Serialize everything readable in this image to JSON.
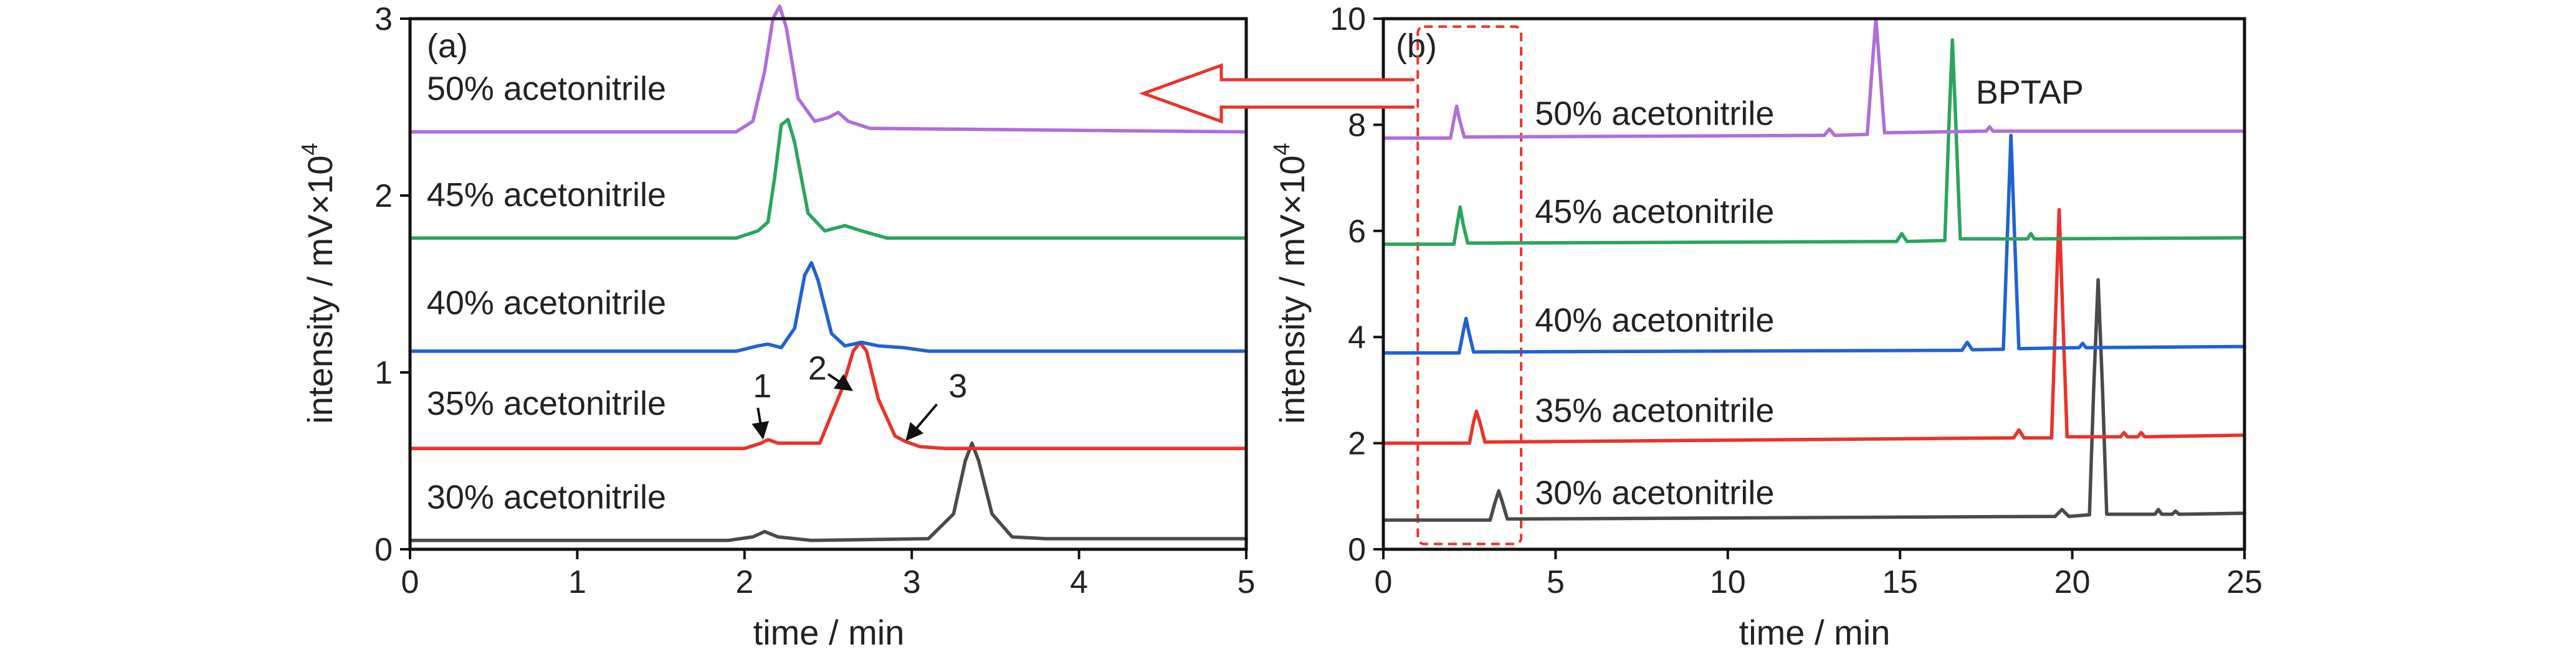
{
  "chart_data": [
    {
      "type": "line",
      "panel_label": "(a)",
      "xlabel": "time / min",
      "ylabel": "intensity / mV×10",
      "ylabel_exponent": "4",
      "xlim": [
        0,
        5
      ],
      "ylim": [
        0,
        3
      ],
      "xticks": [
        0,
        1,
        2,
        3,
        4,
        5
      ],
      "yticks": [
        0,
        1,
        2,
        3
      ],
      "grid": false,
      "series": [
        {
          "name": "30% acetonitrile",
          "color": "#4a4a4a",
          "label_y": 0.23,
          "label_x": 0.1,
          "x": [
            0,
            1.9,
            2.05,
            2.12,
            2.2,
            2.4,
            3.1,
            3.25,
            3.32,
            3.36,
            3.4,
            3.48,
            3.6,
            3.8,
            5
          ],
          "y": [
            0.05,
            0.05,
            0.07,
            0.1,
            0.07,
            0.05,
            0.06,
            0.2,
            0.5,
            0.6,
            0.5,
            0.2,
            0.07,
            0.06,
            0.06
          ]
        },
        {
          "name": "35% acetonitrile",
          "color": "#e8332b",
          "label_y": 0.76,
          "label_x": 0.1,
          "x": [
            0,
            2.0,
            2.1,
            2.14,
            2.2,
            2.45,
            2.58,
            2.65,
            2.69,
            2.73,
            2.8,
            2.9,
            2.96,
            3.05,
            3.2,
            5
          ],
          "y": [
            0.57,
            0.57,
            0.6,
            0.62,
            0.6,
            0.6,
            0.9,
            1.12,
            1.17,
            1.12,
            0.85,
            0.64,
            0.61,
            0.58,
            0.57,
            0.57
          ]
        },
        {
          "name": "40% acetonitrile",
          "color": "#1f63d1",
          "label_y": 1.33,
          "label_x": 0.1,
          "x": [
            0,
            1.95,
            2.08,
            2.14,
            2.22,
            2.3,
            2.36,
            2.4,
            2.44,
            2.52,
            2.6,
            2.7,
            2.8,
            2.95,
            3.1,
            5
          ],
          "y": [
            1.12,
            1.12,
            1.15,
            1.16,
            1.14,
            1.25,
            1.55,
            1.62,
            1.52,
            1.22,
            1.15,
            1.17,
            1.15,
            1.14,
            1.12,
            1.12
          ]
        },
        {
          "name": "45% acetonitrile",
          "color": "#2aa55e",
          "label_y": 1.94,
          "label_x": 0.1,
          "x": [
            0,
            1.95,
            2.08,
            2.14,
            2.18,
            2.22,
            2.26,
            2.3,
            2.38,
            2.48,
            2.6,
            2.7,
            2.85,
            5
          ],
          "y": [
            1.76,
            1.76,
            1.8,
            1.85,
            2.1,
            2.4,
            2.43,
            2.3,
            1.9,
            1.8,
            1.83,
            1.8,
            1.76,
            1.76
          ]
        },
        {
          "name": "50% acetonitrile",
          "color": "#b06ed8",
          "label_y": 2.54,
          "label_x": 0.1,
          "x": [
            0,
            1.95,
            2.05,
            2.12,
            2.17,
            2.21,
            2.25,
            2.32,
            2.42,
            2.5,
            2.56,
            2.62,
            2.75,
            5
          ],
          "y": [
            2.36,
            2.36,
            2.42,
            2.7,
            3.0,
            3.07,
            2.95,
            2.55,
            2.42,
            2.44,
            2.47,
            2.42,
            2.38,
            2.36
          ]
        }
      ],
      "annotations": [
        {
          "text": "1",
          "text_x": 2.05,
          "text_y": 0.86,
          "arrow_from": [
            2.08,
            0.8
          ],
          "arrow_to": [
            2.11,
            0.63
          ]
        },
        {
          "text": "2",
          "text_x": 2.38,
          "text_y": 0.96,
          "arrow_from": [
            2.5,
            0.99
          ],
          "arrow_to": [
            2.64,
            0.9
          ]
        },
        {
          "text": "3",
          "text_x": 3.22,
          "text_y": 0.86,
          "arrow_from": [
            3.15,
            0.82
          ],
          "arrow_to": [
            2.97,
            0.62
          ]
        }
      ]
    },
    {
      "type": "line",
      "panel_label": "(b)",
      "xlabel": "time / min",
      "ylabel": "intensity / mV×10",
      "ylabel_exponent": "4",
      "xlim": [
        0,
        25
      ],
      "ylim": [
        0,
        10
      ],
      "xticks": [
        0,
        5,
        10,
        15,
        20,
        25
      ],
      "yticks": [
        0,
        2,
        4,
        6,
        8,
        10
      ],
      "grid": false,
      "series": [
        {
          "name": "30% acetonitrile",
          "color": "#4a4a4a",
          "label_y": 0.85,
          "label_x": 4.4,
          "x": [
            0,
            3.1,
            3.25,
            3.35,
            3.45,
            3.6,
            19.5,
            19.7,
            19.9,
            20.5,
            20.62,
            20.75,
            20.88,
            21.0,
            22.4,
            22.5,
            22.6,
            22.9,
            23.0,
            23.1,
            25
          ],
          "y": [
            0.55,
            0.55,
            0.9,
            1.1,
            0.9,
            0.57,
            0.62,
            0.75,
            0.62,
            0.65,
            3.0,
            5.08,
            3.0,
            0.66,
            0.66,
            0.75,
            0.66,
            0.66,
            0.72,
            0.66,
            0.68
          ]
        },
        {
          "name": "35% acetonitrile",
          "color": "#e8332b",
          "label_y": 2.4,
          "label_x": 4.4,
          "x": [
            0,
            2.5,
            2.62,
            2.7,
            2.8,
            2.95,
            18.3,
            18.45,
            18.6,
            19.4,
            19.52,
            19.62,
            19.72,
            19.85,
            21.4,
            21.5,
            21.6,
            21.9,
            22.0,
            22.1,
            25
          ],
          "y": [
            2.0,
            2.0,
            2.4,
            2.6,
            2.4,
            2.02,
            2.1,
            2.25,
            2.1,
            2.1,
            4.5,
            6.4,
            4.5,
            2.12,
            2.12,
            2.2,
            2.12,
            2.12,
            2.2,
            2.12,
            2.15
          ]
        },
        {
          "name": "40% acetonitrile",
          "color": "#1f63d1",
          "label_y": 4.1,
          "label_x": 4.4,
          "x": [
            0,
            2.2,
            2.32,
            2.4,
            2.48,
            2.62,
            16.8,
            16.95,
            17.1,
            18.0,
            18.12,
            18.22,
            18.32,
            18.45,
            20.2,
            20.3,
            20.4,
            25
          ],
          "y": [
            3.7,
            3.7,
            4.1,
            4.35,
            4.1,
            3.72,
            3.75,
            3.9,
            3.76,
            3.77,
            6.0,
            7.8,
            6.0,
            3.78,
            3.8,
            3.88,
            3.8,
            3.82
          ]
        },
        {
          "name": "45% acetonitrile",
          "color": "#2aa55e",
          "label_y": 6.15,
          "label_x": 4.4,
          "x": [
            0,
            2.05,
            2.15,
            2.23,
            2.31,
            2.45,
            14.9,
            15.05,
            15.2,
            16.3,
            16.42,
            16.52,
            16.62,
            16.75,
            18.7,
            18.8,
            18.9,
            25
          ],
          "y": [
            5.75,
            5.75,
            6.15,
            6.45,
            6.15,
            5.77,
            5.8,
            5.95,
            5.8,
            5.82,
            8.0,
            9.6,
            8.0,
            5.85,
            5.85,
            5.95,
            5.85,
            5.87
          ]
        },
        {
          "name": "50% acetonitrile",
          "color": "#b06ed8",
          "label_y": 8.0,
          "label_x": 4.4,
          "x": [
            0,
            1.95,
            2.05,
            2.13,
            2.21,
            2.35,
            12.8,
            12.95,
            13.1,
            14.05,
            14.18,
            14.3,
            14.42,
            14.55,
            17.5,
            17.6,
            17.7,
            25
          ],
          "y": [
            7.75,
            7.75,
            8.1,
            8.35,
            8.1,
            7.77,
            7.8,
            7.92,
            7.8,
            7.82,
            9.0,
            10.0,
            9.0,
            7.85,
            7.88,
            7.96,
            7.88,
            7.88
          ]
        }
      ],
      "annotations": [
        {
          "text": "BPTAP",
          "text_x": 17.2,
          "text_y": 8.4
        }
      ],
      "highlight_box": {
        "x0": 1.0,
        "x1": 4.0,
        "y0": 0.1,
        "y1": 9.85,
        "color": "#e8332b",
        "style": "dashed"
      }
    }
  ],
  "linking_arrow": {
    "color": "#e8332b",
    "from_panel": "(b)",
    "to_panel": "(a)"
  }
}
